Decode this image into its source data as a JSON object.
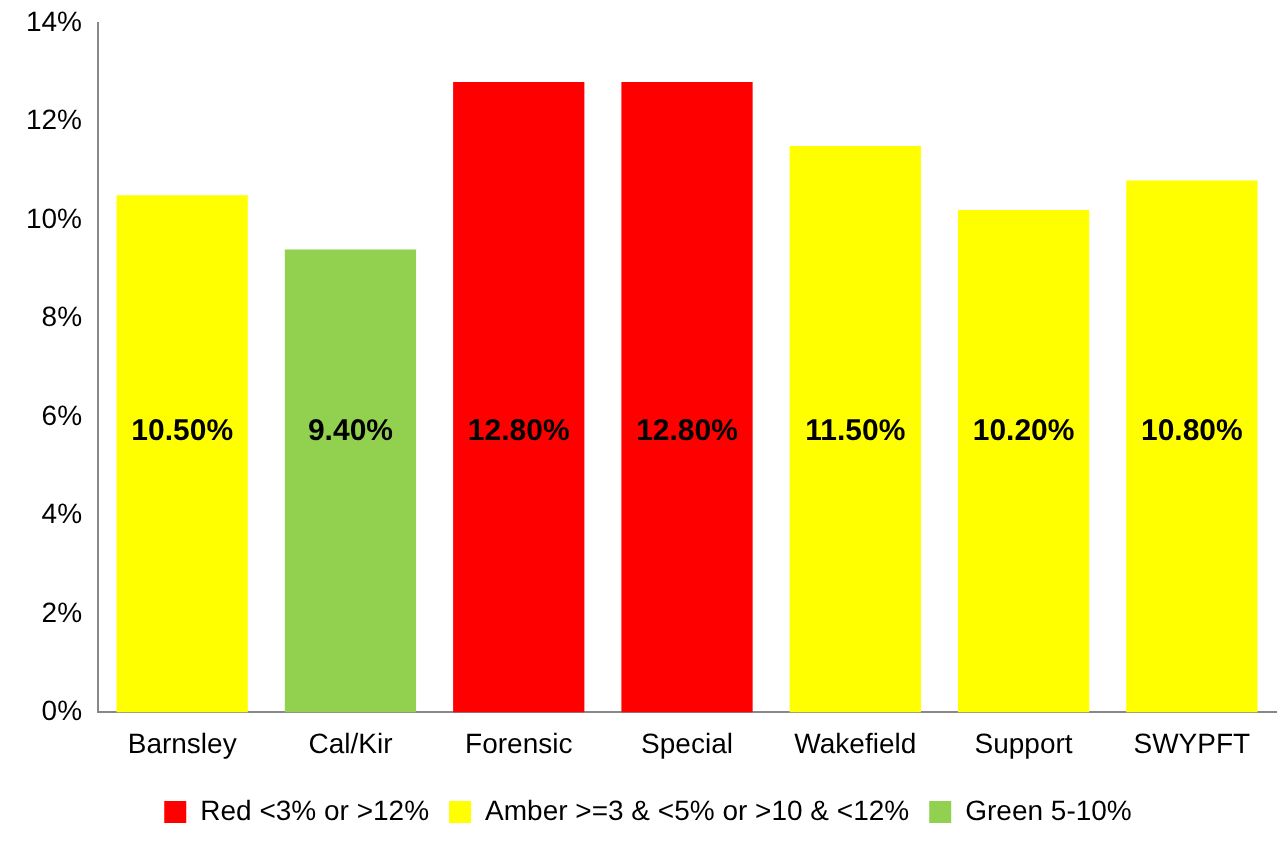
{
  "chart_data": {
    "type": "bar",
    "categories": [
      "Barnsley",
      "Cal/Kir",
      "Forensic",
      "Special",
      "Wakefield",
      "Support",
      "SWYPFT"
    ],
    "series": [
      {
        "name": "Red <3% or >12%",
        "color": "#ff0000",
        "values": [
          null,
          null,
          12.8,
          12.8,
          null,
          null,
          null
        ],
        "value_labels": [
          null,
          null,
          "12.80%",
          "12.80%",
          null,
          null,
          null
        ]
      },
      {
        "name": "Amber >=3 & <5% or >10 & <12%",
        "color": "#ffff00",
        "values": [
          10.5,
          null,
          null,
          null,
          11.5,
          10.2,
          10.8
        ],
        "value_labels": [
          "10.50%",
          null,
          null,
          null,
          "11.50%",
          "10.20%",
          "10.80%"
        ]
      },
      {
        "name": "Green 5-10%",
        "color": "#92d050",
        "values": [
          null,
          9.4,
          null,
          null,
          null,
          null,
          null
        ],
        "value_labels": [
          null,
          "9.40%",
          null,
          null,
          null,
          null,
          null
        ]
      }
    ],
    "stacked": true,
    "ylim": [
      0,
      14
    ],
    "yticks": [
      {
        "value": 0,
        "label": "0%"
      },
      {
        "value": 2,
        "label": "2%"
      },
      {
        "value": 4,
        "label": "4%"
      },
      {
        "value": 6,
        "label": "6%"
      },
      {
        "value": 8,
        "label": "8%"
      },
      {
        "value": 10,
        "label": "10%"
      },
      {
        "value": 12,
        "label": "12%"
      },
      {
        "value": 14,
        "label": "14%"
      }
    ],
    "grid": false,
    "legend": "bottom"
  }
}
